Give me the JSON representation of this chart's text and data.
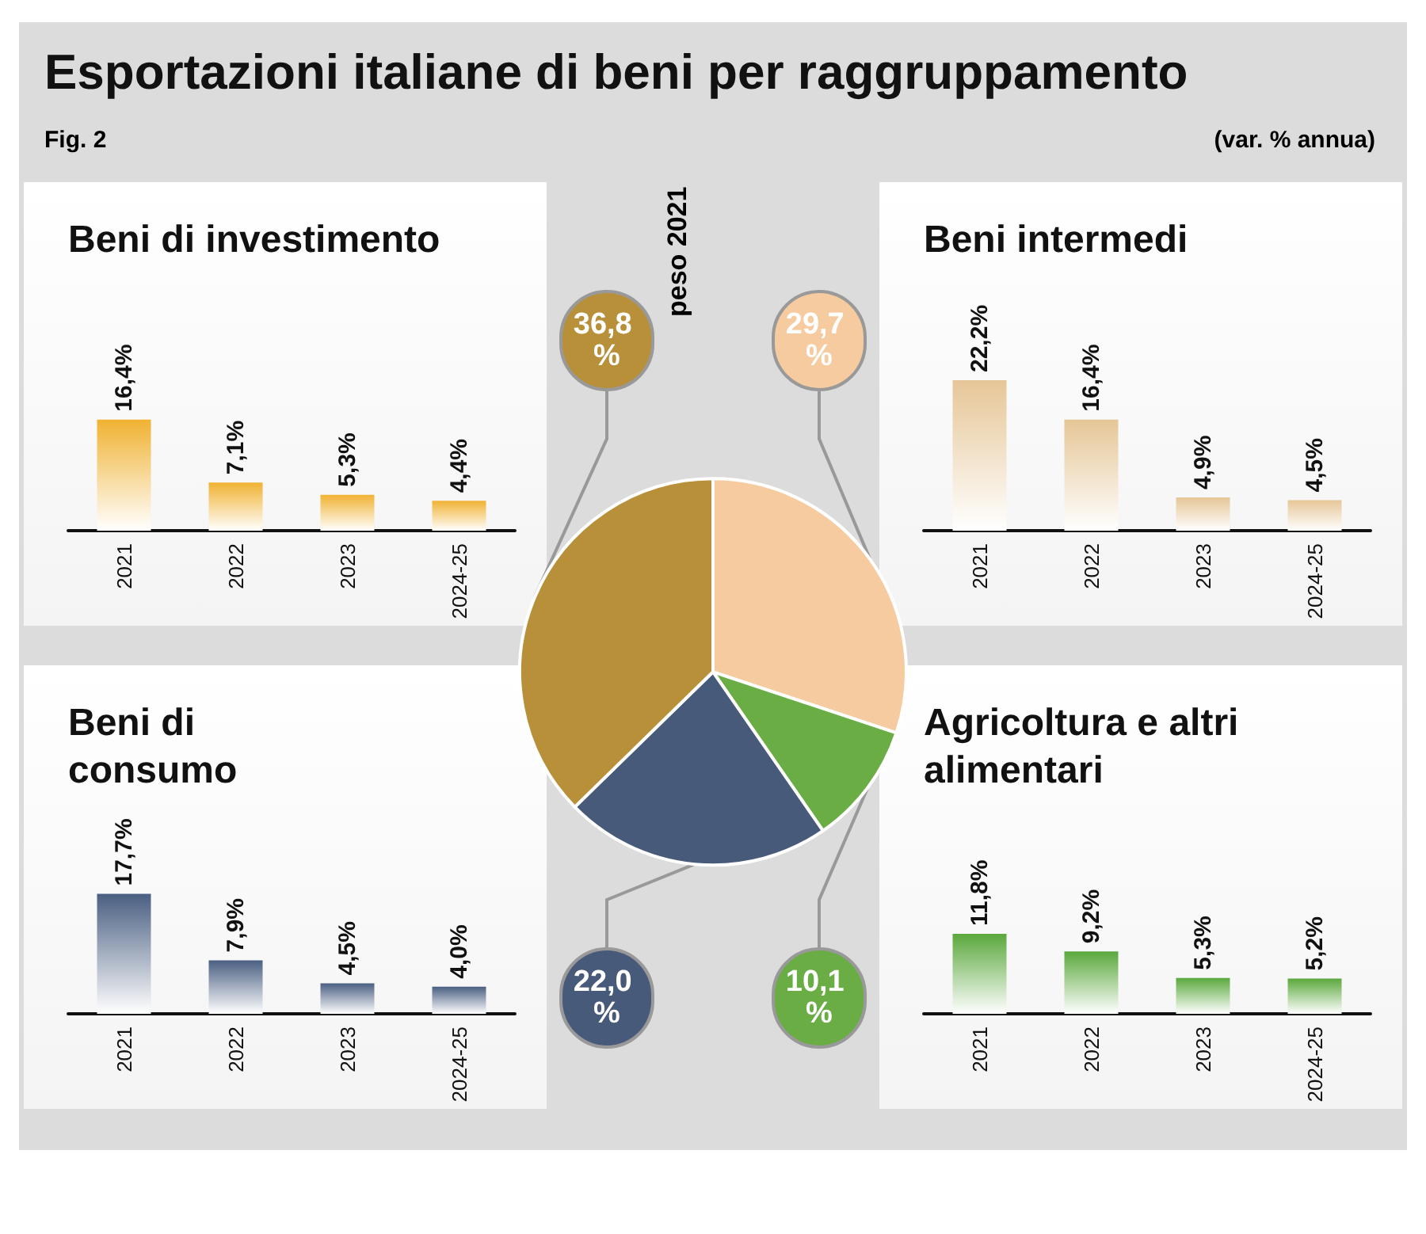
{
  "chart_data": [
    {
      "type": "bar",
      "title": "Beni di investimento",
      "annotations": [
        "Esportazioni italiane di beni per raggruppamento",
        "Fig. 2",
        "(var. % annua)"
      ],
      "categories": [
        "2021",
        "2022",
        "2023",
        "2024-25"
      ],
      "values": [
        16.4,
        7.1,
        5.3,
        4.4
      ],
      "color": "#f0b232",
      "value_labels": [
        "16,4%",
        "7,1%",
        "5,3%",
        "4,4%"
      ],
      "tick_labels": "x"
    },
    {
      "type": "pie",
      "title": "peso 2021",
      "categories": [
        null,
        null,
        null,
        null
      ],
      "values": [
        29.7,
        10.1,
        22.0,
        36.8
      ],
      "colors": [
        "#f6cba0",
        "#6aad45",
        "#475a7a",
        "#b8903a"
      ],
      "value_labels": [
        "29,7 %",
        "10,1 %",
        "22,0 %",
        "36,8 %"
      ]
    },
    {
      "type": "bar",
      "title": "Beni intermedi",
      "categories": [
        "2021",
        "2022",
        "2023",
        "2024-25"
      ],
      "values": [
        22.2,
        16.4,
        4.9,
        4.5
      ],
      "color": "#e6c697",
      "value_labels": [
        "22,2%",
        "16,4%",
        "4,9%",
        "4,5%"
      ],
      "tick_labels": "x"
    },
    {
      "type": "bar",
      "title": "Beni di consumo",
      "categories": [
        "2021",
        "2022",
        "2023",
        "2024-25"
      ],
      "values": [
        17.7,
        7.9,
        4.5,
        4.0
      ],
      "color": "#4a5f82",
      "value_labels": [
        "17,7%",
        "7,9%",
        "4,5%",
        "4,0%"
      ],
      "tick_labels": "x"
    },
    {
      "type": "bar",
      "title": "Agricoltura e altri alimentari",
      "categories": [
        "2021",
        "2022",
        "2023",
        "2024-25"
      ],
      "values": [
        11.8,
        9.2,
        5.3,
        5.2
      ],
      "color": "#5aa83c",
      "value_labels": [
        "11,8%",
        "9,2%",
        "5,3%",
        "5,2%"
      ],
      "tick_labels": "x"
    }
  ]
}
